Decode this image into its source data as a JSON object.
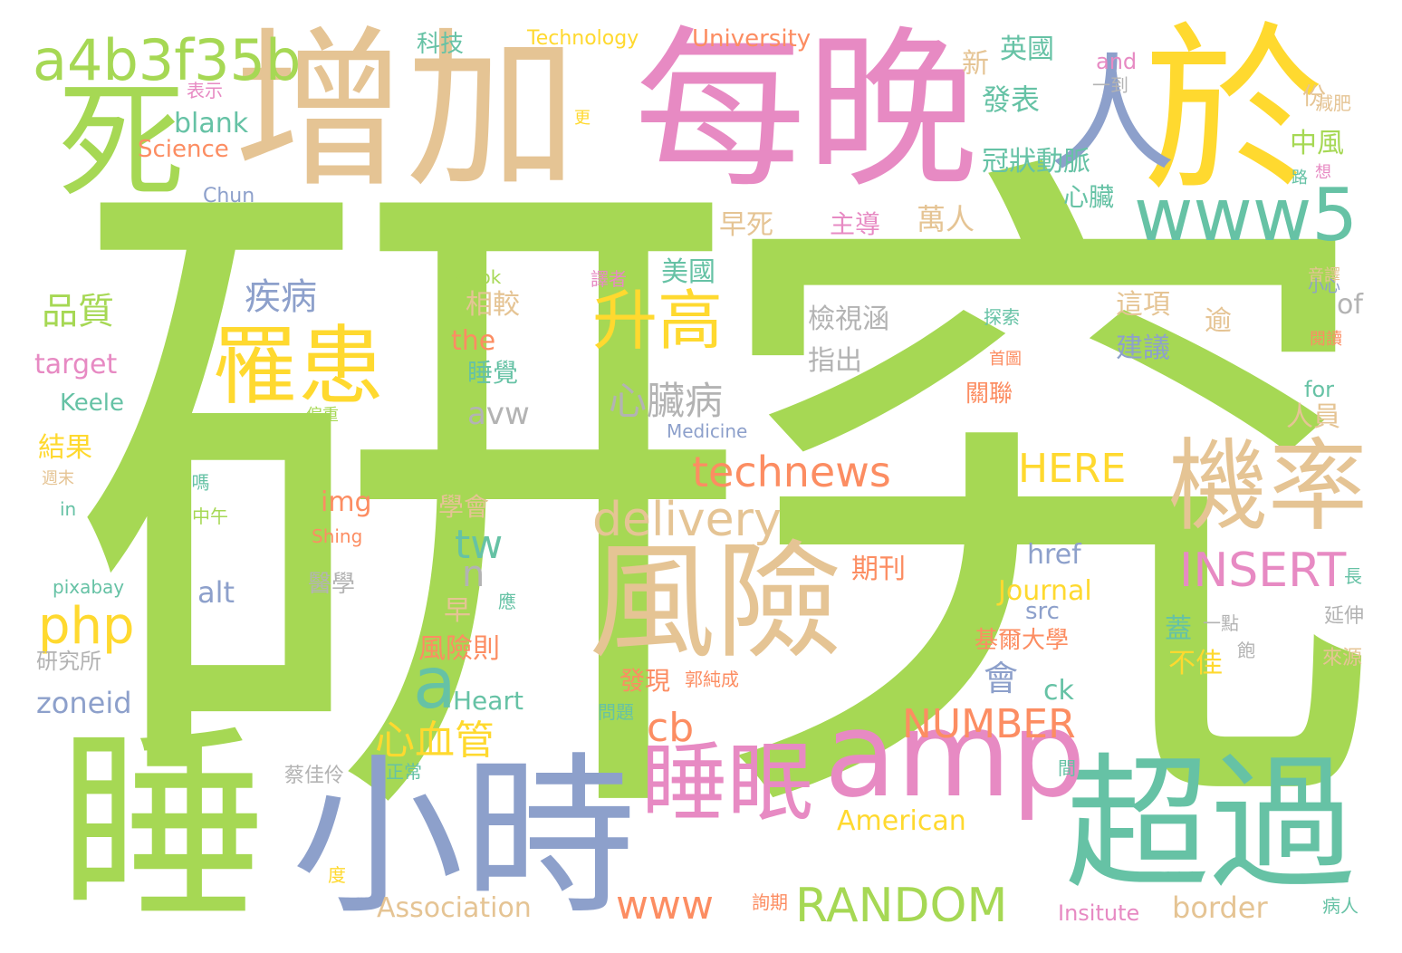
{
  "palette": {
    "green": "#a6d854",
    "tan": "#e5c494",
    "pink": "#e78ac3",
    "blue": "#8da0cb",
    "yellow": "#ffd92f",
    "teal": "#66c2a5",
    "orange": "#fc8d62",
    "gray": "#b3b3b3"
  },
  "words": [
    {
      "id": "w0",
      "text": "研究",
      "color": "#a6d854"
    },
    {
      "id": "w1",
      "text": "增加",
      "color": "#e5c494"
    },
    {
      "id": "w2",
      "text": "每晚",
      "color": "#e78ac3"
    },
    {
      "id": "w3",
      "text": "於",
      "color": "#ffd92f"
    },
    {
      "id": "w4",
      "text": "睡",
      "color": "#a6d854"
    },
    {
      "id": "w5",
      "text": "死",
      "color": "#a6d854"
    },
    {
      "id": "w6",
      "text": "小時",
      "color": "#8da0cb"
    },
    {
      "id": "w7",
      "text": "超過",
      "color": "#66c2a5"
    },
    {
      "id": "w8",
      "text": "風險",
      "color": "#e5c494"
    },
    {
      "id": "w9",
      "text": "amp",
      "color": "#e78ac3"
    },
    {
      "id": "w10",
      "text": "機率",
      "color": "#e5c494"
    },
    {
      "id": "w11",
      "text": "人",
      "color": "#8da0cb"
    },
    {
      "id": "w12",
      "text": "罹患",
      "color": "#ffd92f"
    },
    {
      "id": "w13",
      "text": "睡眠",
      "color": "#e78ac3"
    },
    {
      "id": "w14",
      "text": "升高",
      "color": "#ffd92f"
    },
    {
      "id": "w15",
      "text": "www5",
      "color": "#66c2a5"
    },
    {
      "id": "w16",
      "text": "a4b3f35b",
      "color": "#a6d854"
    },
    {
      "id": "w17",
      "text": "technews",
      "color": "#fc8d62"
    },
    {
      "id": "w18",
      "text": "delivery",
      "color": "#e5c494"
    },
    {
      "id": "w19",
      "text": "RANDOM",
      "color": "#a6d854"
    },
    {
      "id": "w20",
      "text": "NUMBER",
      "color": "#fc8d62"
    },
    {
      "id": "w21",
      "text": "INSERT",
      "color": "#e78ac3"
    },
    {
      "id": "w22",
      "text": "HERE",
      "color": "#ffd92f"
    },
    {
      "id": "w23",
      "text": "php",
      "color": "#ffd92f"
    },
    {
      "id": "w24",
      "text": "a",
      "color": "#66c2a5"
    },
    {
      "id": "w25",
      "text": "心血管",
      "color": "#ffd92f"
    },
    {
      "id": "w26",
      "text": "心臟病",
      "color": "#b3b3b3"
    },
    {
      "id": "w27",
      "text": "疾病",
      "color": "#8da0cb"
    },
    {
      "id": "w28",
      "text": "品質",
      "color": "#a6d854"
    },
    {
      "id": "w29",
      "text": "www",
      "color": "#fc8d62"
    },
    {
      "id": "w30",
      "text": "cb",
      "color": "#fc8d62"
    },
    {
      "id": "w31",
      "text": "tw",
      "color": "#66c2a5"
    },
    {
      "id": "w32",
      "text": "n",
      "color": "#b3b3b3"
    },
    {
      "id": "w33",
      "text": "會",
      "color": "#8da0cb"
    },
    {
      "id": "w34",
      "text": "blank",
      "color": "#66c2a5"
    },
    {
      "id": "w35",
      "text": "Science",
      "color": "#fc8d62"
    },
    {
      "id": "w36",
      "text": "Chun",
      "color": "#8da0cb"
    },
    {
      "id": "w37",
      "text": "科技",
      "color": "#66c2a5"
    },
    {
      "id": "w38",
      "text": "Technology",
      "color": "#ffd92f"
    },
    {
      "id": "w39",
      "text": "University",
      "color": "#fc8d62"
    },
    {
      "id": "w40",
      "text": "and",
      "color": "#e78ac3"
    },
    {
      "id": "w41",
      "text": "表示",
      "color": "#e78ac3"
    },
    {
      "id": "w42",
      "text": "更",
      "color": "#ffd92f"
    },
    {
      "id": "w43",
      "text": "英國",
      "color": "#66c2a5"
    },
    {
      "id": "w44",
      "text": "新",
      "color": "#e5c494"
    },
    {
      "id": "w45",
      "text": "發表",
      "color": "#66c2a5"
    },
    {
      "id": "w46",
      "text": "冠狀動脈",
      "color": "#66c2a5"
    },
    {
      "id": "w47",
      "text": "中風",
      "color": "#a6d854"
    },
    {
      "id": "w48",
      "text": "心臟",
      "color": "#66c2a5"
    },
    {
      "id": "w49",
      "text": "早死",
      "color": "#e5c494"
    },
    {
      "id": "w50",
      "text": "主導",
      "color": "#e78ac3"
    },
    {
      "id": "w51",
      "text": "萬人",
      "color": "#e5c494"
    },
    {
      "id": "w52",
      "text": "美國",
      "color": "#66c2a5"
    },
    {
      "id": "w53",
      "text": "相較",
      "color": "#e5c494"
    },
    {
      "id": "w54",
      "text": "the",
      "color": "#fc8d62"
    },
    {
      "id": "w55",
      "text": "睡覺",
      "color": "#66c2a5"
    },
    {
      "id": "w56",
      "text": "avw",
      "color": "#b3b3b3"
    },
    {
      "id": "w57",
      "text": "檢視涵",
      "color": "#b3b3b3"
    },
    {
      "id": "w58",
      "text": "指出",
      "color": "#b3b3b3"
    },
    {
      "id": "w59",
      "text": "這項",
      "color": "#e5c494"
    },
    {
      "id": "w60",
      "text": "建議",
      "color": "#8da0cb"
    },
    {
      "id": "w61",
      "text": "逾",
      "color": "#e5c494"
    },
    {
      "id": "w62",
      "text": "of",
      "color": "#b3b3b3"
    },
    {
      "id": "w63",
      "text": "人員",
      "color": "#e5c494"
    },
    {
      "id": "w64",
      "text": "關聯",
      "color": "#fc8d62"
    },
    {
      "id": "w65",
      "text": "target",
      "color": "#e78ac3"
    },
    {
      "id": "w66",
      "text": "Keele",
      "color": "#66c2a5"
    },
    {
      "id": "w67",
      "text": "結果",
      "color": "#ffd92f"
    },
    {
      "id": "w68",
      "text": "Kwok",
      "color": "#a6d854"
    },
    {
      "id": "w69",
      "text": "譯者",
      "color": "#e78ac3"
    },
    {
      "id": "w70",
      "text": "探索",
      "color": "#66c2a5"
    },
    {
      "id": "w71",
      "text": "首圖",
      "color": "#fc8d62"
    },
    {
      "id": "w72",
      "text": "偏重",
      "color": "#a6d854"
    },
    {
      "id": "w73",
      "text": "Medicine",
      "color": "#8da0cb"
    },
    {
      "id": "w74",
      "text": "for",
      "color": "#66c2a5"
    },
    {
      "id": "w75",
      "text": "img",
      "color": "#fc8d62"
    },
    {
      "id": "w76",
      "text": "學會",
      "color": "#e5c494"
    },
    {
      "id": "w77",
      "text": "期刊",
      "color": "#fc8d62"
    },
    {
      "id": "w78",
      "text": "href",
      "color": "#8da0cb"
    },
    {
      "id": "w79",
      "text": "Journal",
      "color": "#ffd92f"
    },
    {
      "id": "w80",
      "text": "src",
      "color": "#8da0cb"
    },
    {
      "id": "w81",
      "text": "alt",
      "color": "#8da0cb"
    },
    {
      "id": "w82",
      "text": "醫學",
      "color": "#b3b3b3"
    },
    {
      "id": "w83",
      "text": "早",
      "color": "#e5c494"
    },
    {
      "id": "w84",
      "text": "風險則",
      "color": "#fc8d62"
    },
    {
      "id": "w85",
      "text": "發現",
      "color": "#fc8d62"
    },
    {
      "id": "w86",
      "text": "郭純成",
      "color": "#fc8d62"
    },
    {
      "id": "w87",
      "text": "基爾大學",
      "color": "#fc8d62"
    },
    {
      "id": "w88",
      "text": "蓋",
      "color": "#66c2a5"
    },
    {
      "id": "w89",
      "text": "一點",
      "color": "#b3b3b3"
    },
    {
      "id": "w90",
      "text": "不佳",
      "color": "#ffd92f"
    },
    {
      "id": "w91",
      "text": "ck",
      "color": "#66c2a5"
    },
    {
      "id": "w92",
      "text": "Heart",
      "color": "#66c2a5"
    },
    {
      "id": "w93",
      "text": "zoneid",
      "color": "#8da0cb"
    },
    {
      "id": "w94",
      "text": "研究所",
      "color": "#b3b3b3"
    },
    {
      "id": "w95",
      "text": "pixabay",
      "color": "#66c2a5"
    },
    {
      "id": "w96",
      "text": "Shing",
      "color": "#fc8d62"
    },
    {
      "id": "w97",
      "text": "中午",
      "color": "#a6d854"
    },
    {
      "id": "w98",
      "text": "in",
      "color": "#66c2a5"
    },
    {
      "id": "w99",
      "text": "週末",
      "color": "#e5c494"
    },
    {
      "id": "w100",
      "text": "嗎",
      "color": "#66c2a5"
    },
    {
      "id": "w101",
      "text": "不",
      "color": "#a6d854"
    },
    {
      "id": "w102",
      "text": "應",
      "color": "#66c2a5"
    },
    {
      "id": "w103",
      "text": "問題",
      "color": "#66c2a5"
    },
    {
      "id": "w104",
      "text": "American",
      "color": "#ffd92f"
    },
    {
      "id": "w105",
      "text": "Association",
      "color": "#e5c494"
    },
    {
      "id": "w106",
      "text": "border",
      "color": "#e5c494"
    },
    {
      "id": "w107",
      "text": "Insitute",
      "color": "#e78ac3"
    },
    {
      "id": "w108",
      "text": "病人",
      "color": "#66c2a5"
    },
    {
      "id": "w109",
      "text": "詢期",
      "color": "#fc8d62"
    },
    {
      "id": "w110",
      "text": "蔡佳伶",
      "color": "#b3b3b3"
    },
    {
      "id": "w111",
      "text": "正常",
      "color": "#66c2a5"
    },
    {
      "id": "w112",
      "text": "度",
      "color": "#ffd92f"
    },
    {
      "id": "w113",
      "text": "間",
      "color": "#66c2a5"
    },
    {
      "id": "w114",
      "text": "份",
      "color": "#e5c494"
    },
    {
      "id": "w115",
      "text": "一到",
      "color": "#b3b3b3"
    },
    {
      "id": "w116",
      "text": "減肥",
      "color": "#e5c494"
    },
    {
      "id": "w117",
      "text": "想",
      "color": "#e78ac3"
    },
    {
      "id": "w118",
      "text": "路",
      "color": "#66c2a5"
    },
    {
      "id": "w119",
      "text": "音譯",
      "color": "#e5c494"
    },
    {
      "id": "w120",
      "text": "小心",
      "color": "#8da0cb"
    },
    {
      "id": "w121",
      "text": "閱讀",
      "color": "#fc8d62"
    },
    {
      "id": "w122",
      "text": "長",
      "color": "#66c2a5"
    },
    {
      "id": "w123",
      "text": "延伸",
      "color": "#b3b3b3"
    },
    {
      "id": "w124",
      "text": "飽",
      "color": "#b3b3b3"
    },
    {
      "id": "w125",
      "text": "來源",
      "color": "#e5c494"
    }
  ]
}
